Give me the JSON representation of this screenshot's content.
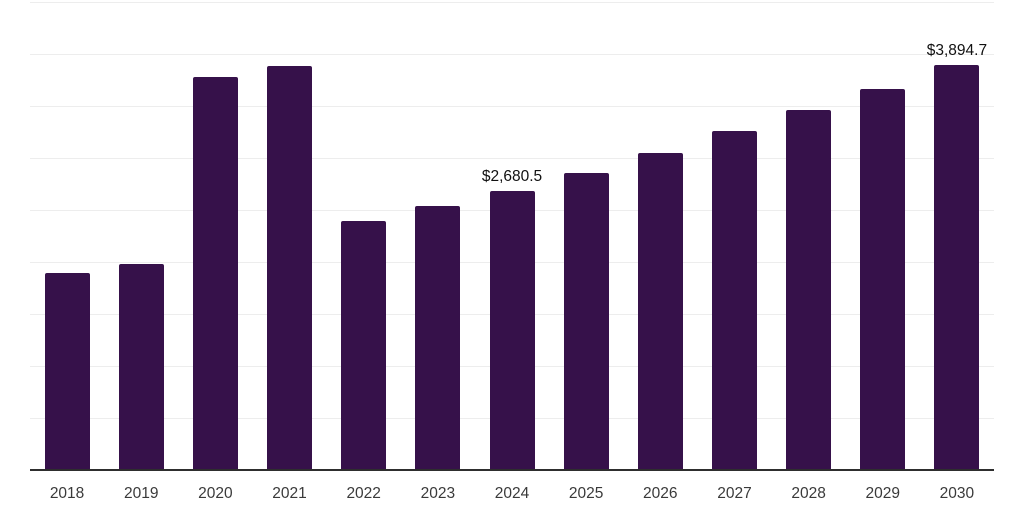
{
  "chart_data": {
    "type": "bar",
    "title": "",
    "xlabel": "",
    "ylabel": "",
    "categories": [
      "2018",
      "2019",
      "2020",
      "2021",
      "2022",
      "2023",
      "2024",
      "2025",
      "2026",
      "2027",
      "2028",
      "2029",
      "2030"
    ],
    "values": [
      1890,
      1985,
      3780,
      3885,
      2395,
      2535,
      2680.5,
      2860,
      3050,
      3260,
      3460,
      3665,
      3894.7
    ],
    "bar_labels": [
      "",
      "",
      "",
      "",
      "",
      "",
      "$2,680.5",
      "",
      "",
      "",
      "",
      "",
      "$3,894.7"
    ],
    "ylim": [
      0,
      4500
    ],
    "gridline_step": 500,
    "grid": "horizontal",
    "legend_position": "none",
    "y_axis_labels_visible": false
  },
  "colors": {
    "bar": "#36114a",
    "gridline": "#ededed",
    "axis": "#2e2e2e",
    "tick_text": "#3a3a3a",
    "bar_label_text": "#111111",
    "background": "#ffffff"
  }
}
